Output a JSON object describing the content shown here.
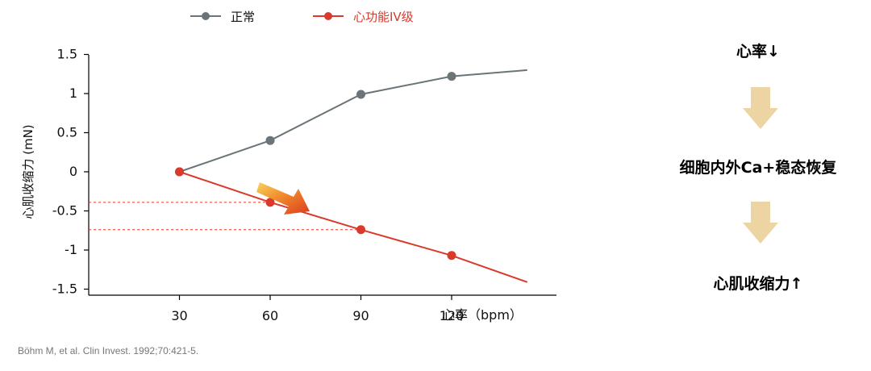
{
  "chart_data": {
    "type": "line",
    "x": [
      30,
      60,
      90,
      120
    ],
    "x_ticks": [
      "30",
      "60",
      "90",
      "120"
    ],
    "y_ticks": [
      "1.5",
      "1",
      "0.5",
      "0",
      "-0.5",
      "-1",
      "-1.5"
    ],
    "xlabel": "心率（bpm）",
    "ylabel": "心肌收缩力 (mN)",
    "ylim": [
      -1.5,
      1.5
    ],
    "series": [
      {
        "name": "正常",
        "color": "#6b7479",
        "values": [
          0,
          0.4,
          0.99,
          1.22
        ],
        "line_end": 1.3
      },
      {
        "name": "心功能IV级",
        "color": "#d93a2b",
        "values": [
          0,
          -0.39,
          -0.74,
          -1.07
        ],
        "line_end": -1.41
      }
    ],
    "reference_lines": [
      -0.39,
      -0.74
    ]
  },
  "flow": {
    "step1": "心率↓",
    "step2": "细胞内外Ca+稳态恢复",
    "step3": "心肌收缩力↑",
    "arrow_color": "#ecd4a3"
  },
  "citation": "Böhm M, et al. Clin Invest. 1992;70:421-5."
}
